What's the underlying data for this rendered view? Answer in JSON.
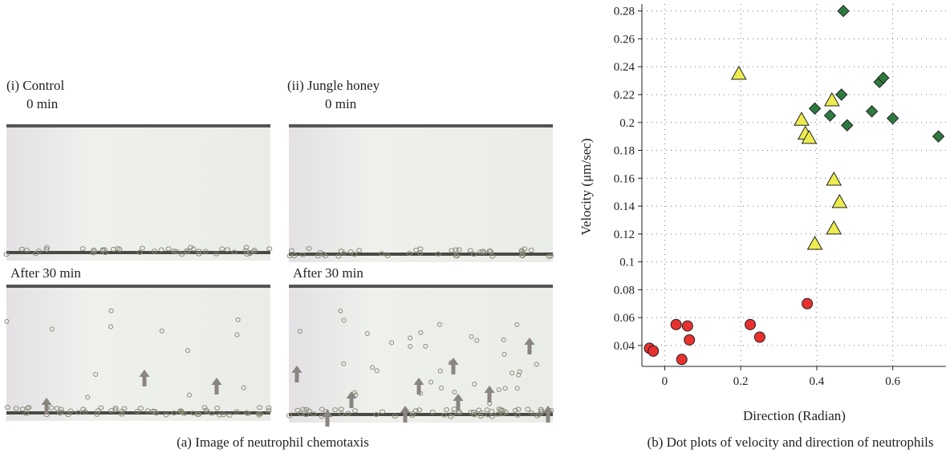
{
  "figure": {
    "panel_i_title": "(i) Control",
    "panel_i_time": "0 min",
    "panel_ii_title": "(ii) Jungle honey",
    "panel_ii_time": "0 min",
    "panel_i_after": "After 30 min",
    "panel_ii_after": "After 30 min",
    "caption_a": "(a)  Image of neutrophil chemotaxis",
    "caption_b": "(b)  Dot plots of velocity and direction of neutrophils"
  },
  "chart_data": {
    "type": "scatter",
    "x_label": "Direction (Radian)",
    "y_label": "Velocity (μm/sec)",
    "xlim": [
      -0.06,
      0.74
    ],
    "ylim": [
      0.025,
      0.285
    ],
    "xticks": [
      0,
      0.2,
      0.4,
      0.6
    ],
    "yticks": [
      0.04,
      0.06,
      0.08,
      0.1,
      0.12,
      0.14,
      0.16,
      0.18,
      0.2,
      0.22,
      0.24,
      0.26,
      0.28
    ],
    "grid": true,
    "series": [
      {
        "marker": "circle",
        "color": "#e8312f",
        "x": [
          -0.04,
          -0.03,
          0.03,
          0.06,
          0.065,
          0.045,
          0.225,
          0.25,
          0.375
        ],
        "values": [
          0.038,
          0.036,
          0.055,
          0.054,
          0.044,
          0.03,
          0.055,
          0.046,
          0.07
        ]
      },
      {
        "marker": "triangle",
        "color": "#ecec50",
        "x": [
          0.195,
          0.36,
          0.37,
          0.38,
          0.44,
          0.445,
          0.46,
          0.445,
          0.395
        ],
        "values": [
          0.235,
          0.202,
          0.192,
          0.189,
          0.216,
          0.159,
          0.143,
          0.124,
          0.113
        ]
      },
      {
        "marker": "diamond",
        "color": "#2e7a3e",
        "x": [
          0.47,
          0.465,
          0.395,
          0.435,
          0.48,
          0.545,
          0.565,
          0.575,
          0.6,
          0.72
        ],
        "values": [
          0.28,
          0.22,
          0.21,
          0.205,
          0.198,
          0.208,
          0.229,
          0.232,
          0.203,
          0.19
        ]
      }
    ]
  }
}
